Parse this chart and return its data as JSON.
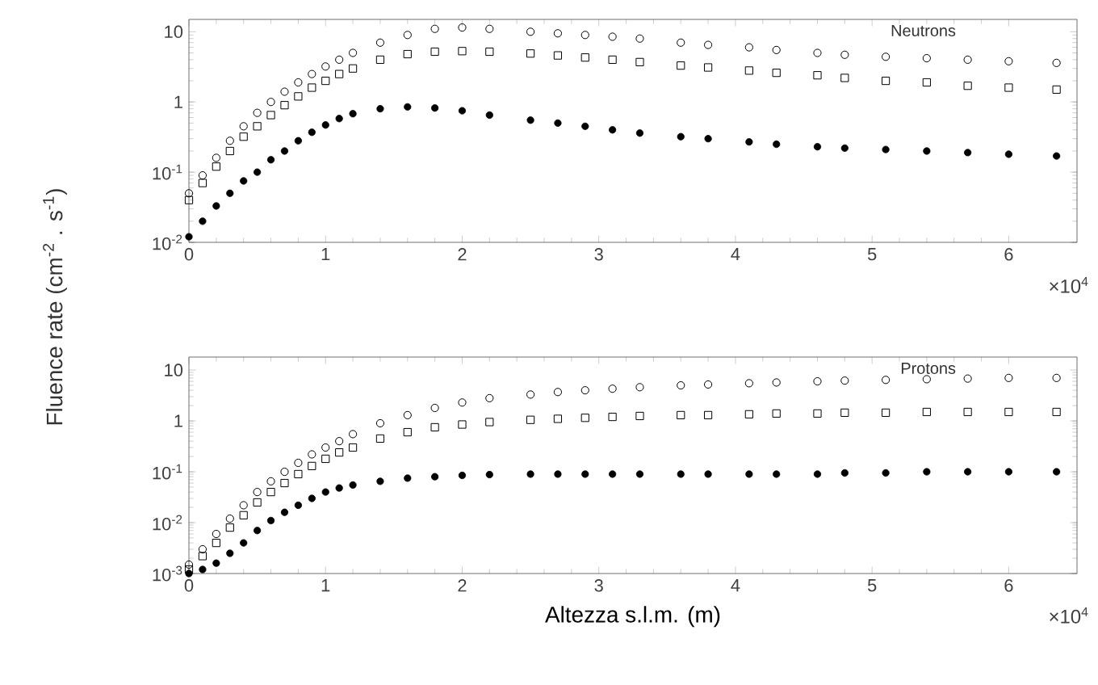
{
  "chart_data": [
    {
      "type": "scatter",
      "ylabel": "Fluence rate (cm$^{-2}$ . s$^{-1}$)",
      "log": "y",
      "grid": false,
      "x": [
        0,
        0.1,
        0.2,
        0.3,
        0.4,
        0.5,
        0.6,
        0.7,
        0.8,
        0.9,
        1.0,
        1.1,
        1.2,
        1.4,
        1.6,
        1.8,
        2.0,
        2.2,
        2.5,
        2.7,
        2.9,
        3.1,
        3.3,
        3.6,
        3.8,
        4.1,
        4.3,
        4.6,
        4.8,
        5.1,
        5.4,
        5.7,
        6.0,
        6.35
      ],
      "xlim": [
        0,
        6.5
      ],
      "ylim": [
        0.01,
        15
      ],
      "xticks": [
        0,
        1,
        2,
        3,
        4,
        5,
        6
      ],
      "yticks": [
        {
          "value": 0.01,
          "label": "10$^{-2}$"
        },
        {
          "value": 0.1,
          "label": "10$^{-1}$"
        },
        {
          "value": 1,
          "label": "1"
        },
        {
          "value": 10,
          "label": "10"
        }
      ],
      "annotations": [
        "Neutrons",
        "×10$^{4}$"
      ],
      "series": [
        {
          "color": "#000000",
          "marker": "circle",
          "values": [
            0.05,
            0.09,
            0.16,
            0.28,
            0.45,
            0.7,
            1.0,
            1.4,
            1.9,
            2.5,
            3.2,
            4.0,
            5.0,
            7,
            9,
            11,
            11.5,
            11,
            10,
            9.5,
            9,
            8.5,
            8,
            7,
            6.5,
            6,
            5.5,
            5,
            4.7,
            4.4,
            4.2,
            4,
            3.8,
            3.6
          ]
        },
        {
          "color": "#000000",
          "marker": "square",
          "values": [
            0.04,
            0.07,
            0.12,
            0.2,
            0.32,
            0.45,
            0.65,
            0.9,
            1.2,
            1.6,
            2.0,
            2.5,
            3.0,
            4.0,
            4.8,
            5.2,
            5.3,
            5.2,
            4.9,
            4.6,
            4.3,
            4.0,
            3.7,
            3.3,
            3.1,
            2.8,
            2.6,
            2.4,
            2.2,
            2.0,
            1.9,
            1.7,
            1.6,
            1.5
          ]
        },
        {
          "color": "#000000",
          "marker": "filled circle",
          "values": [
            0.012,
            0.02,
            0.033,
            0.05,
            0.075,
            0.1,
            0.15,
            0.2,
            0.28,
            0.37,
            0.47,
            0.58,
            0.68,
            0.8,
            0.85,
            0.82,
            0.75,
            0.65,
            0.55,
            0.5,
            0.45,
            0.4,
            0.36,
            0.32,
            0.3,
            0.27,
            0.25,
            0.23,
            0.22,
            0.21,
            0.2,
            0.19,
            0.18,
            0.17
          ]
        }
      ]
    },
    {
      "type": "scatter",
      "xlabel": "Altezza s.l.m. (m)",
      "log": "y",
      "grid": false,
      "x": [
        0,
        0.1,
        0.2,
        0.3,
        0.4,
        0.5,
        0.6,
        0.7,
        0.8,
        0.9,
        1.0,
        1.1,
        1.2,
        1.4,
        1.6,
        1.8,
        2.0,
        2.2,
        2.5,
        2.7,
        2.9,
        3.1,
        3.3,
        3.6,
        3.8,
        4.1,
        4.3,
        4.6,
        4.8,
        5.1,
        5.4,
        5.7,
        6.0,
        6.35
      ],
      "xlim": [
        0,
        6.5
      ],
      "ylim": [
        0.001,
        18
      ],
      "xticks": [
        0,
        1,
        2,
        3,
        4,
        5,
        6
      ],
      "yticks": [
        {
          "value": 0.001,
          "label": "10$^{-3}$"
        },
        {
          "value": 0.01,
          "label": "10$^{-2}$"
        },
        {
          "value": 0.1,
          "label": "10$^{-1}$"
        },
        {
          "value": 1,
          "label": "1"
        },
        {
          "value": 10,
          "label": "10"
        }
      ],
      "annotations": [
        "Protons",
        "×10$^{4}$"
      ],
      "series": [
        {
          "color": "#000000",
          "marker": "circle",
          "values": [
            0.0015,
            0.003,
            0.006,
            0.012,
            0.022,
            0.04,
            0.065,
            0.1,
            0.15,
            0.22,
            0.3,
            0.4,
            0.55,
            0.9,
            1.3,
            1.8,
            2.3,
            2.8,
            3.3,
            3.7,
            4.0,
            4.3,
            4.6,
            5.0,
            5.2,
            5.5,
            5.7,
            6.0,
            6.2,
            6.4,
            6.6,
            6.8,
            7.0,
            7.0
          ]
        },
        {
          "color": "#000000",
          "marker": "square",
          "values": [
            0.0012,
            0.0022,
            0.004,
            0.008,
            0.014,
            0.025,
            0.04,
            0.06,
            0.09,
            0.13,
            0.18,
            0.24,
            0.3,
            0.45,
            0.6,
            0.75,
            0.85,
            0.95,
            1.05,
            1.1,
            1.15,
            1.2,
            1.25,
            1.3,
            1.3,
            1.35,
            1.4,
            1.4,
            1.45,
            1.45,
            1.5,
            1.5,
            1.5,
            1.5
          ]
        },
        {
          "color": "#000000",
          "marker": "filled circle",
          "values": [
            0.001,
            0.0012,
            0.0016,
            0.0025,
            0.004,
            0.007,
            0.011,
            0.016,
            0.022,
            0.03,
            0.04,
            0.048,
            0.055,
            0.065,
            0.075,
            0.08,
            0.085,
            0.088,
            0.09,
            0.09,
            0.09,
            0.09,
            0.09,
            0.09,
            0.09,
            0.09,
            0.09,
            0.09,
            0.095,
            0.095,
            0.1,
            0.1,
            0.1,
            0.1
          ]
        }
      ]
    }
  ]
}
